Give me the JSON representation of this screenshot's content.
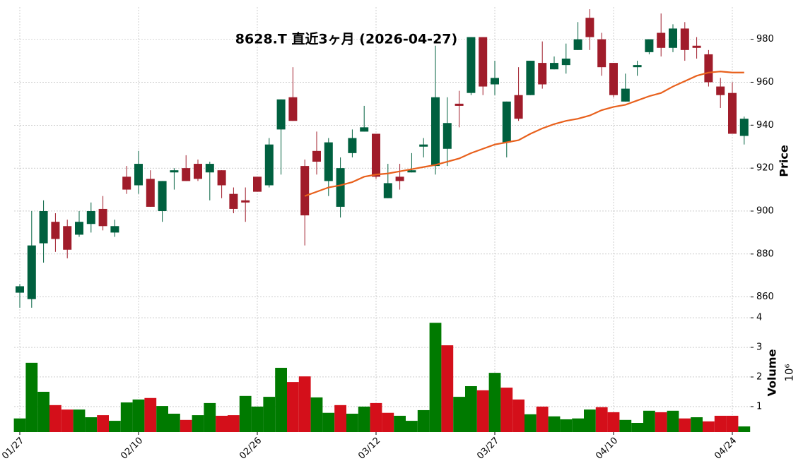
{
  "chart_data": {
    "type": "candlestick",
    "title": "8628.T  直近3ヶ月  (2026-04-27)",
    "categories": [
      "01/27",
      null,
      null,
      null,
      null,
      null,
      null,
      null,
      null,
      null,
      "02/10",
      null,
      null,
      null,
      null,
      null,
      null,
      null,
      null,
      null,
      "02/26",
      null,
      null,
      null,
      null,
      null,
      null,
      null,
      null,
      null,
      "03/12",
      null,
      null,
      null,
      null,
      null,
      null,
      null,
      null,
      null,
      "03/27",
      null,
      null,
      null,
      null,
      null,
      null,
      null,
      null,
      null,
      "04/10",
      null,
      null,
      null,
      null,
      null,
      null,
      null,
      null,
      null,
      "04/24",
      null
    ],
    "open": [
      862,
      859,
      885,
      895,
      893,
      889,
      894,
      901,
      890,
      916,
      912,
      915,
      900,
      918,
      920,
      922,
      918,
      919,
      908,
      905,
      916,
      912,
      938,
      953,
      921,
      928,
      914,
      902,
      927,
      937,
      936,
      906,
      916,
      918,
      930,
      921,
      929,
      950,
      955,
      981,
      959,
      932,
      954,
      954,
      969,
      966,
      968,
      975,
      990,
      980,
      969,
      951,
      967,
      974,
      983,
      976,
      985,
      977,
      973,
      958,
      955,
      935
    ],
    "high": [
      866,
      900,
      905,
      899,
      896,
      900,
      904,
      907,
      896,
      921,
      928,
      919,
      914,
      920,
      926,
      924,
      923,
      919,
      911,
      911,
      916,
      934,
      952,
      967,
      924,
      937,
      934,
      925,
      938,
      949,
      936,
      922,
      922,
      927,
      934,
      977,
      953,
      956,
      981,
      981,
      970,
      951,
      967,
      970,
      979,
      972,
      978,
      988,
      994,
      983,
      969,
      964,
      970,
      980,
      992,
      987,
      988,
      981,
      975,
      962,
      960,
      944
    ],
    "low": [
      855,
      855,
      876,
      881,
      878,
      888,
      890,
      891,
      888,
      908,
      908,
      902,
      895,
      910,
      914,
      914,
      905,
      906,
      899,
      895,
      909,
      911,
      917,
      942,
      884,
      917,
      907,
      897,
      925,
      937,
      915,
      906,
      910,
      918,
      925,
      917,
      921,
      939,
      954,
      954,
      954,
      925,
      942,
      954,
      957,
      966,
      964,
      975,
      975,
      963,
      953,
      951,
      963,
      973,
      972,
      974,
      970,
      971,
      958,
      948,
      936,
      931
    ],
    "close": [
      865,
      884,
      900,
      887,
      882,
      895,
      900,
      893,
      893,
      910,
      922,
      902,
      914,
      919,
      914,
      915,
      922,
      912,
      901,
      904,
      909,
      931,
      952,
      942,
      898,
      923,
      932,
      920,
      934,
      939,
      916,
      913,
      914,
      919,
      931,
      953,
      941,
      949,
      981,
      958,
      962,
      951,
      943,
      970,
      959,
      969,
      971,
      980,
      981,
      967,
      954,
      957,
      968,
      980,
      976,
      985,
      975,
      976,
      960,
      954,
      936,
      943
    ],
    "up_color": "#00603f",
    "down_color": "#a01c2a",
    "ma": {
      "color": "#e8601c",
      "values": [
        null,
        null,
        null,
        null,
        null,
        null,
        null,
        null,
        null,
        null,
        null,
        null,
        null,
        null,
        null,
        null,
        null,
        null,
        null,
        null,
        null,
        null,
        null,
        null,
        907,
        909,
        911,
        912,
        913.5,
        916,
        917,
        917.5,
        918.5,
        919.5,
        920.5,
        921.5,
        923,
        924.5,
        927,
        929,
        931,
        932,
        933,
        936,
        938.5,
        940.5,
        942,
        943,
        944.5,
        947,
        948.5,
        949.5,
        951.5,
        953.5,
        955,
        958,
        960.5,
        963,
        964.5,
        965,
        964.5,
        964.5
      ]
    },
    "volume": {
      "values": [
        0.6,
        2.48,
        1.5,
        1.05,
        0.9,
        0.9,
        0.64,
        0.71,
        0.52,
        1.14,
        1.24,
        1.29,
        1.02,
        0.76,
        0.55,
        0.71,
        1.12,
        0.69,
        0.71,
        1.36,
        1.0,
        1.33,
        2.31,
        1.83,
        2.02,
        1.31,
        0.79,
        1.05,
        0.76,
        1.0,
        1.12,
        0.79,
        0.69,
        0.52,
        0.88,
        3.83,
        3.07,
        1.33,
        1.69,
        1.55,
        2.14,
        1.64,
        1.24,
        0.74,
        1.0,
        0.67,
        0.57,
        0.6,
        0.9,
        0.98,
        0.81,
        0.55,
        0.45,
        0.86,
        0.81,
        0.86,
        0.6,
        0.64,
        0.5,
        0.69,
        0.69,
        0.33
      ],
      "up_color": "#007a00",
      "down_color": "#d40f1a"
    },
    "ylabel": "Price",
    "ylim": [
      852,
      995
    ],
    "yticks": [
      860,
      880,
      900,
      920,
      940,
      960,
      980
    ],
    "y2label": "Volume",
    "y2_offset_label": "10⁶",
    "y2lim": [
      0.14,
      4.05
    ],
    "y2ticks": [
      1,
      2,
      3,
      4
    ],
    "grid": true
  }
}
